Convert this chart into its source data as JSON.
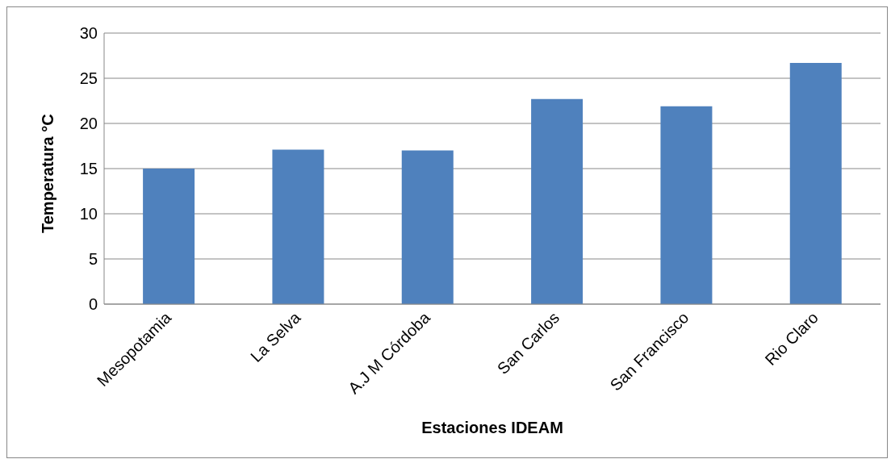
{
  "chart_data": {
    "type": "bar",
    "xlabel": "Estaciones IDEAM",
    "ylabel": "Temperatura °C",
    "categories": [
      "Mesopotamia",
      "La Selva",
      "A.J M Córdoba",
      "San Carlos",
      "San Francisco",
      "Rio Claro"
    ],
    "values": [
      15.0,
      17.1,
      17.0,
      22.7,
      21.9,
      26.7
    ],
    "color": "#4f81bd",
    "ylim": [
      0,
      30
    ],
    "yticks": [
      0,
      5,
      10,
      15,
      20,
      25,
      30
    ],
    "grid": "y"
  }
}
